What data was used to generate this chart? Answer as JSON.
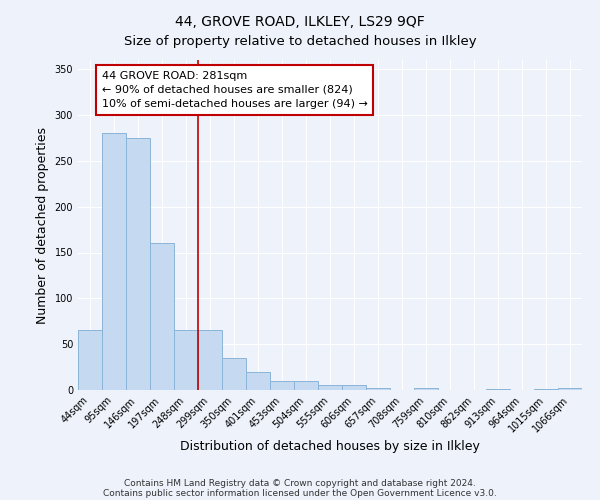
{
  "title": "44, GROVE ROAD, ILKLEY, LS29 9QF",
  "subtitle": "Size of property relative to detached houses in Ilkley",
  "xlabel": "Distribution of detached houses by size in Ilkley",
  "ylabel": "Number of detached properties",
  "categories": [
    "44sqm",
    "95sqm",
    "146sqm",
    "197sqm",
    "248sqm",
    "299sqm",
    "350sqm",
    "401sqm",
    "453sqm",
    "504sqm",
    "555sqm",
    "606sqm",
    "657sqm",
    "708sqm",
    "759sqm",
    "810sqm",
    "862sqm",
    "913sqm",
    "964sqm",
    "1015sqm",
    "1066sqm"
  ],
  "values": [
    65,
    280,
    275,
    160,
    65,
    65,
    35,
    20,
    10,
    10,
    5,
    5,
    2,
    0,
    2,
    0,
    0,
    1,
    0,
    1,
    2
  ],
  "bar_color": "#c5d9f1",
  "bar_edge_color": "#8ab4d8",
  "vline_color": "#c00000",
  "vline_pos": 4.5,
  "annotation_text": "44 GROVE ROAD: 281sqm\n← 90% of detached houses are smaller (824)\n10% of semi-detached houses are larger (94) →",
  "annotation_box_color": "#ffffff",
  "annotation_box_edgecolor": "#c00000",
  "ylim": [
    0,
    360
  ],
  "yticks": [
    0,
    50,
    100,
    150,
    200,
    250,
    300,
    350
  ],
  "footer_line1": "Contains HM Land Registry data © Crown copyright and database right 2024.",
  "footer_line2": "Contains public sector information licensed under the Open Government Licence v3.0.",
  "background_color": "#edf2fb",
  "grid_color": "#ffffff",
  "title_fontsize": 10,
  "subtitle_fontsize": 9.5,
  "tick_fontsize": 7,
  "label_fontsize": 9,
  "annotation_fontsize": 8,
  "footer_fontsize": 6.5
}
